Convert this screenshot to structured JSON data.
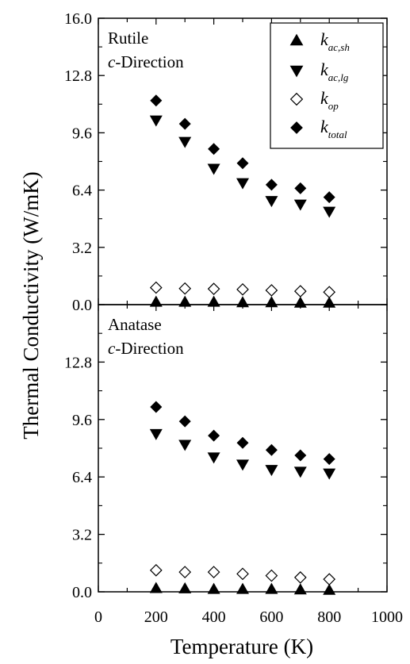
{
  "chart_data": {
    "type": "scatter",
    "xlabel": "Temperature (K)",
    "ylabel": "Thermal Conductivity (W/mK)",
    "x_ticks": [
      "0",
      "200",
      "400",
      "600",
      "800",
      "1000"
    ],
    "xlim": [
      0,
      1000
    ],
    "grid": false,
    "legend_position": "top-right",
    "legend": [
      {
        "base": "k",
        "sub": "ac,sh",
        "marker": "triangle-up-filled"
      },
      {
        "base": "k",
        "sub": "ac,lg",
        "marker": "triangle-down-filled"
      },
      {
        "base": "k",
        "sub": "op",
        "marker": "diamond-open"
      },
      {
        "base": "k",
        "sub": "total",
        "marker": "diamond-filled"
      }
    ],
    "panels": [
      {
        "annotation_line1": "Rutile",
        "annotation_line2_italic": "c",
        "annotation_line2_rest": "-Direction",
        "ylim": [
          0,
          16
        ],
        "y_ticks": [
          "0.0",
          "3.2",
          "6.4",
          "9.6",
          "12.8",
          "16.0"
        ],
        "x": [
          200,
          300,
          400,
          500,
          600,
          700,
          800
        ],
        "series": [
          {
            "key": "k_ac_sh",
            "values": [
              0.15,
              0.15,
              0.15,
              0.12,
              0.12,
              0.1,
              0.1
            ]
          },
          {
            "key": "k_ac_lg",
            "values": [
              10.3,
              9.1,
              7.6,
              6.8,
              5.8,
              5.6,
              5.2
            ]
          },
          {
            "key": "k_op",
            "values": [
              0.95,
              0.9,
              0.88,
              0.85,
              0.8,
              0.75,
              0.7
            ]
          },
          {
            "key": "k_total",
            "values": [
              11.4,
              10.1,
              8.7,
              7.9,
              6.7,
              6.5,
              6.0
            ]
          }
        ]
      },
      {
        "annotation_line1": "Anatase",
        "annotation_line2_italic": "c",
        "annotation_line2_rest": "-Direction",
        "ylim": [
          0,
          16
        ],
        "y_ticks": [
          "0.0",
          "3.2",
          "6.4",
          "9.6",
          "12.8"
        ],
        "x": [
          200,
          300,
          400,
          500,
          600,
          700,
          800
        ],
        "series": [
          {
            "key": "k_ac_sh",
            "values": [
              0.2,
              0.18,
              0.15,
              0.15,
              0.15,
              0.12,
              0.1
            ]
          },
          {
            "key": "k_ac_lg",
            "values": [
              8.8,
              8.2,
              7.5,
              7.1,
              6.8,
              6.7,
              6.6
            ]
          },
          {
            "key": "k_op",
            "values": [
              1.2,
              1.1,
              1.1,
              1.0,
              0.9,
              0.8,
              0.7
            ]
          },
          {
            "key": "k_total",
            "values": [
              10.3,
              9.5,
              8.7,
              8.3,
              7.9,
              7.6,
              7.4
            ]
          }
        ]
      }
    ]
  }
}
